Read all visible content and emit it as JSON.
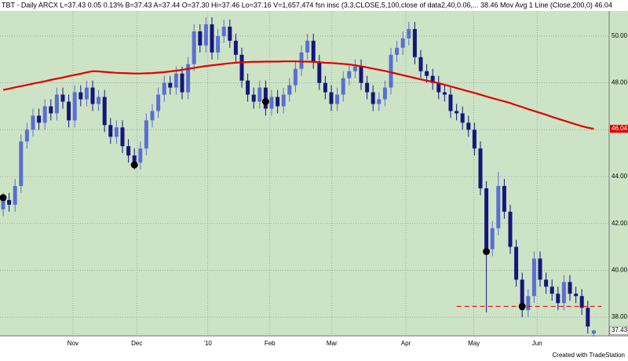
{
  "chart_data": {
    "type": "candlestick",
    "header": "TBT - Daily  ARCX  L=37.43  0.05  0.13%  B=37.43  A=37.44  O=37.30  Hi=37.46  Lo=37.16  V=1,657,474  fsn insc (3,3,CLOSE,5,100,close of data2,40,0.06,...  38.46  Mov Avg 1 Line (Close,200,0)  46.04",
    "footer": "Created with TradeStation",
    "ylim": [
      37.2,
      51.07
    ],
    "yticks": [
      {
        "value": 38,
        "label": "38.00"
      },
      {
        "value": 40,
        "label": "40.00"
      },
      {
        "value": 42,
        "label": "42.00"
      },
      {
        "value": 44,
        "label": "44.00"
      },
      {
        "value": 46,
        "label": "46.00"
      },
      {
        "value": 48,
        "label": "48.00"
      },
      {
        "value": 50,
        "label": "50.00"
      }
    ],
    "xticks": [
      {
        "value": 11.7,
        "label": "Nov"
      },
      {
        "value": 22.4,
        "label": "Dec"
      },
      {
        "value": 34.3,
        "label": "'10"
      },
      {
        "value": 44.7,
        "label": "Feb"
      },
      {
        "value": 55.1,
        "label": "Mar"
      },
      {
        "value": 67.5,
        "label": "Apr"
      },
      {
        "value": 78.9,
        "label": "May"
      },
      {
        "value": 89.5,
        "label": "Jun"
      }
    ],
    "grid": true,
    "series": [
      {
        "type": "candlestick",
        "up_color": "#5a6fd0",
        "down_color": "#16167a",
        "open": [
          42.6,
          43.0,
          42.8,
          43.6,
          45.5,
          46.0,
          46.6,
          46.3,
          47.0,
          46.7,
          47.5,
          47.2,
          46.4,
          47.6,
          47.3,
          47.8,
          47.1,
          47.4,
          46.2,
          45.7,
          46.1,
          45.3,
          44.9,
          44.6,
          45.2,
          46.4,
          46.8,
          47.5,
          48.0,
          47.8,
          48.4,
          47.6,
          48.8,
          50.2,
          49.6,
          50.5,
          49.3,
          50.0,
          50.4,
          49.8,
          49.2,
          48.1,
          47.5,
          47.2,
          47.8,
          46.9,
          47.4,
          47.0,
          47.5,
          47.9,
          48.6,
          49.3,
          49.8,
          48.9,
          48.0,
          47.6,
          47.1,
          47.5,
          48.2,
          48.5,
          48.7,
          48.0,
          47.6,
          47.1,
          47.3,
          47.8,
          49.2,
          49.5,
          49.9,
          50.3,
          49.1,
          48.5,
          48.3,
          48.0,
          47.6,
          47.5,
          46.8,
          46.7,
          46.3,
          46.0,
          45.2,
          43.5,
          40.9,
          41.8,
          43.6,
          42.5,
          41.0,
          39.6,
          38.3,
          38.9,
          40.5,
          39.6,
          39.3,
          39.0,
          38.6,
          39.5,
          39.0,
          38.9,
          38.4,
          37.3
        ],
        "high": [
          43.3,
          43.3,
          43.9,
          45.8,
          46.3,
          46.9,
          46.9,
          47.3,
          47.3,
          47.8,
          47.8,
          47.5,
          47.9,
          47.9,
          48.1,
          48.1,
          47.7,
          47.7,
          46.5,
          46.4,
          46.4,
          45.6,
          45.2,
          45.5,
          46.7,
          47.1,
          47.8,
          48.3,
          48.3,
          48.7,
          48.7,
          49.1,
          50.5,
          50.5,
          50.8,
          50.8,
          50.3,
          50.7,
          50.7,
          50.1,
          49.5,
          48.4,
          47.8,
          48.1,
          48.1,
          47.7,
          47.7,
          47.8,
          48.2,
          48.9,
          49.6,
          50.1,
          50.1,
          49.2,
          48.3,
          47.9,
          47.8,
          48.5,
          48.8,
          49.0,
          49.0,
          48.3,
          47.9,
          47.6,
          48.1,
          49.5,
          49.8,
          50.2,
          50.6,
          50.6,
          49.4,
          48.8,
          48.6,
          48.3,
          47.9,
          47.8,
          47.1,
          47.0,
          46.6,
          46.3,
          45.5,
          43.8,
          42.1,
          44.2,
          43.9,
          42.8,
          41.3,
          39.9,
          39.2,
          40.8,
          40.8,
          39.9,
          39.6,
          39.3,
          39.8,
          39.8,
          39.3,
          39.2,
          38.7,
          37.46
        ],
        "low": [
          42.3,
          42.5,
          42.5,
          43.3,
          45.2,
          45.7,
          46.0,
          46.0,
          46.4,
          46.4,
          46.9,
          46.1,
          46.1,
          47.0,
          47.0,
          46.8,
          46.8,
          45.9,
          45.4,
          45.4,
          45.0,
          44.6,
          44.3,
          44.3,
          44.9,
          46.1,
          46.5,
          47.2,
          47.5,
          47.5,
          47.3,
          47.3,
          48.5,
          49.3,
          49.3,
          49.0,
          49.0,
          49.7,
          49.5,
          48.9,
          47.8,
          47.2,
          46.9,
          46.9,
          46.6,
          46.6,
          46.7,
          46.7,
          47.2,
          47.6,
          48.3,
          49.0,
          48.6,
          47.7,
          47.3,
          46.8,
          46.8,
          47.2,
          47.9,
          48.2,
          47.7,
          47.3,
          46.8,
          46.8,
          47.0,
          47.5,
          48.9,
          49.2,
          49.6,
          48.8,
          48.2,
          48.0,
          47.7,
          47.3,
          47.2,
          46.5,
          46.4,
          46.0,
          45.7,
          44.9,
          43.2,
          38.2,
          40.6,
          41.5,
          42.2,
          40.7,
          39.3,
          38.0,
          38.0,
          38.6,
          39.3,
          39.0,
          38.7,
          38.3,
          38.3,
          38.7,
          38.6,
          38.1,
          37.3,
          37.16
        ],
        "close": [
          43.0,
          42.8,
          43.6,
          45.5,
          46.0,
          46.6,
          46.3,
          47.0,
          46.7,
          47.5,
          47.2,
          46.4,
          47.6,
          47.3,
          47.8,
          47.1,
          47.4,
          46.2,
          45.7,
          46.1,
          45.3,
          44.9,
          44.6,
          45.2,
          46.4,
          46.8,
          47.5,
          48.0,
          47.8,
          48.4,
          47.6,
          48.8,
          50.2,
          49.6,
          50.5,
          49.3,
          50.0,
          50.4,
          49.8,
          49.2,
          48.1,
          47.5,
          47.2,
          47.8,
          46.9,
          47.4,
          47.0,
          47.5,
          47.9,
          48.6,
          49.3,
          49.8,
          48.9,
          48.0,
          47.6,
          47.1,
          47.5,
          48.2,
          48.5,
          48.7,
          48.0,
          47.6,
          47.1,
          47.3,
          47.8,
          49.2,
          49.5,
          49.9,
          50.3,
          49.1,
          48.5,
          48.3,
          48.0,
          47.6,
          47.5,
          46.8,
          46.7,
          46.3,
          46.0,
          45.2,
          43.5,
          40.9,
          41.8,
          43.6,
          42.5,
          41.0,
          39.6,
          38.3,
          38.9,
          40.5,
          39.6,
          39.3,
          39.0,
          38.6,
          39.5,
          39.0,
          38.9,
          38.4,
          37.6,
          37.43
        ]
      },
      {
        "type": "line",
        "color": "#e00000",
        "values": [
          47.7,
          47.75,
          47.81,
          47.86,
          47.91,
          47.97,
          48.02,
          48.07,
          48.13,
          48.18,
          48.23,
          48.29,
          48.34,
          48.39,
          48.45,
          48.5,
          48.49,
          48.47,
          48.45,
          48.43,
          48.42,
          48.41,
          48.4,
          48.4,
          48.41,
          48.42,
          48.44,
          48.46,
          48.49,
          48.52,
          48.56,
          48.6,
          48.64,
          48.68,
          48.72,
          48.75,
          48.78,
          48.81,
          48.84,
          48.86,
          48.88,
          48.89,
          48.9,
          48.9,
          48.91,
          48.91,
          48.91,
          48.92,
          48.92,
          48.92,
          48.91,
          48.91,
          48.9,
          48.88,
          48.86,
          48.85,
          48.83,
          48.81,
          48.79,
          48.75,
          48.71,
          48.66,
          48.61,
          48.56,
          48.51,
          48.45,
          48.39,
          48.33,
          48.27,
          48.21,
          48.15,
          48.1,
          48.05,
          47.99,
          47.92,
          47.85,
          47.78,
          47.71,
          47.64,
          47.57,
          47.5,
          47.42,
          47.35,
          47.28,
          47.21,
          47.14,
          47.05,
          46.97,
          46.88,
          46.8,
          46.72,
          46.64,
          46.55,
          46.47,
          46.39,
          46.31,
          46.23,
          46.15,
          46.09,
          46.04
        ]
      }
    ],
    "markers": {
      "color": "#000000",
      "x": [
        0,
        22,
        44,
        81,
        87
      ],
      "values": [
        43.1,
        44.5,
        47.2,
        40.8,
        38.46
      ]
    },
    "reference_line": {
      "value": 38.46,
      "from": 76,
      "color": "#e00000"
    }
  }
}
